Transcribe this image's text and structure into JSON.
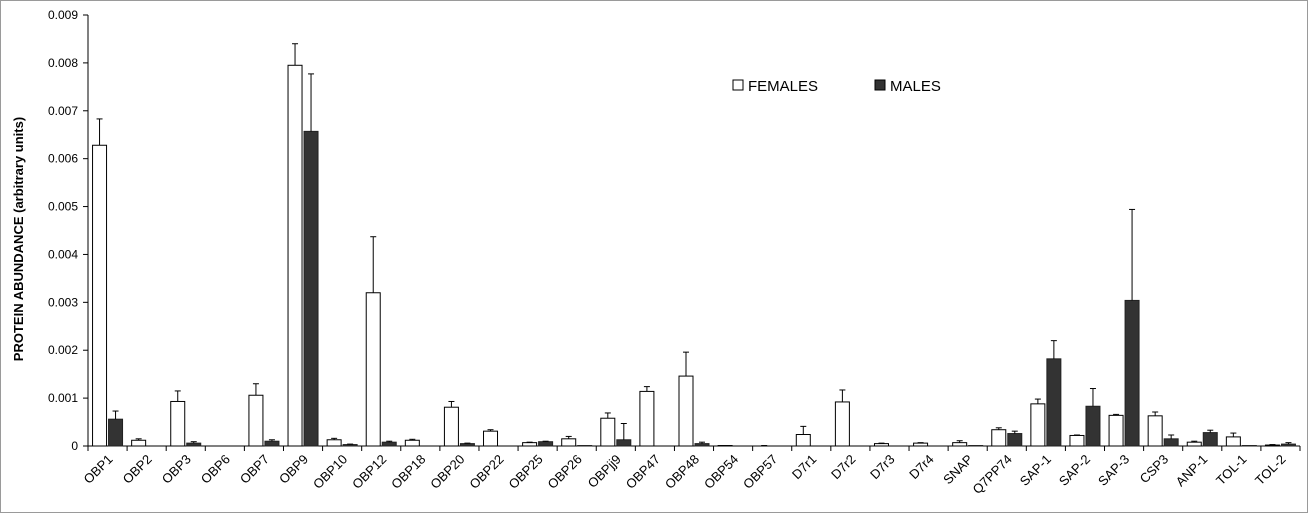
{
  "chart_data": {
    "type": "bar",
    "title": "",
    "xlabel": "",
    "ylabel": "PROTEIN ABUNDANCE (arbitrary units)",
    "ylim": [
      0,
      0.009
    ],
    "yticks": [
      "0",
      "0.001",
      "0.002",
      "0.003",
      "0.004",
      "0.005",
      "0.006",
      "0.007",
      "0.008",
      "0.009"
    ],
    "grid": false,
    "legend_position": "top-right",
    "categories": [
      "OBP1",
      "OBP2",
      "OBP3",
      "OBP6",
      "OBP7",
      "OBP9",
      "OBP10",
      "OBP12",
      "OBP18",
      "OBP20",
      "OBP22",
      "OBP25",
      "OBP26",
      "OBPjj9",
      "OBP47",
      "OBP48",
      "OBP54",
      "OBP57",
      "D7r1",
      "D7r2",
      "D7r3",
      "D7r4",
      "SNAP",
      "Q7PP74",
      "SAP-1",
      "SAP-2",
      "SAP-3",
      "CSP3",
      "ANP-1",
      "TOL-1",
      "TOL-2"
    ],
    "series": [
      {
        "name": "FEMALES",
        "color": "#ffffff",
        "values": [
          0.00628,
          0.00012,
          0.00093,
          0.0,
          0.00106,
          0.00795,
          0.00013,
          0.0032,
          0.00012,
          0.00081,
          0.00031,
          7e-05,
          0.00015,
          0.00058,
          0.00114,
          0.00146,
          1e-05,
          0.0,
          0.00024,
          0.00092,
          5e-05,
          6e-05,
          7e-05,
          0.00034,
          0.00088,
          0.00022,
          0.00064,
          0.00063,
          8e-05,
          0.00019,
          2e-05
        ],
        "errors": [
          0.00055,
          3e-05,
          0.00022,
          0.0,
          0.00024,
          0.00045,
          3e-05,
          0.00117,
          2e-05,
          0.00012,
          3e-05,
          1e-05,
          5e-05,
          0.00011,
          0.0001,
          0.0005,
          0.0,
          1e-05,
          0.00017,
          0.00025,
          1e-05,
          1e-05,
          4e-05,
          4e-05,
          0.0001,
          1e-05,
          2e-05,
          8e-05,
          2e-05,
          8e-05,
          1e-05
        ]
      },
      {
        "name": "MALES",
        "color": "#333333",
        "values": [
          0.00056,
          0.0,
          6e-05,
          0.0,
          0.0001,
          0.00657,
          3e-05,
          8e-05,
          0.0,
          5e-05,
          0.0,
          9e-05,
          1e-05,
          0.00013,
          0.0,
          5e-05,
          0.0,
          0.0,
          0.0,
          0.0,
          0.0,
          0.0,
          1e-05,
          0.00026,
          0.00182,
          0.00083,
          0.00304,
          0.00015,
          0.00028,
          1e-05,
          4e-05
        ],
        "errors": [
          0.00017,
          0.0,
          3e-05,
          0.0,
          3e-05,
          0.0012,
          1e-05,
          2e-05,
          0.0,
          1e-05,
          0.0,
          1e-05,
          0.0,
          0.00034,
          0.0,
          3e-05,
          0.0,
          0.0,
          0.0,
          0.0,
          0.0,
          0.0,
          0.0,
          5e-05,
          0.00038,
          0.00037,
          0.0019,
          8e-05,
          5e-05,
          0.0,
          3e-05
        ]
      }
    ]
  }
}
